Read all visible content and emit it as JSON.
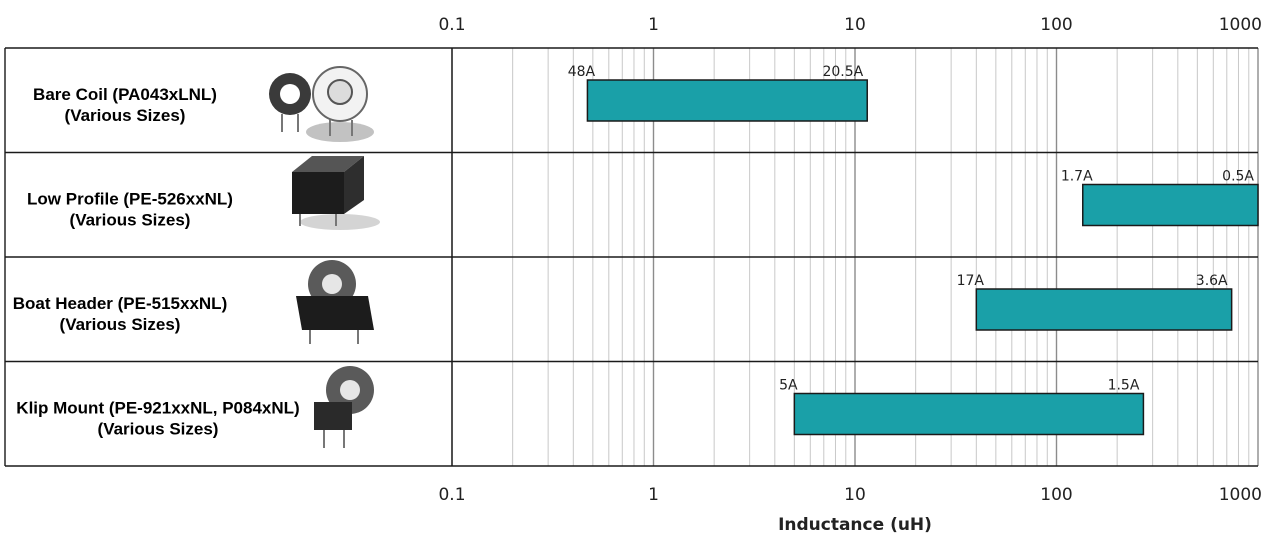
{
  "chart_data": {
    "type": "bar",
    "orientation": "horizontal-range",
    "xlabel": "Inductance (uH)",
    "xscale": "log",
    "xlim": [
      0.1,
      1000
    ],
    "xticks": [
      "0.1",
      "1",
      "10",
      "100",
      "1000"
    ],
    "grid": true,
    "categories": [
      {
        "line1": "Bare Coil (PA043xLNL)",
        "line2": "(Various Sizes)",
        "icon": "toroid-coil-icon",
        "x_start": 0.47,
        "x_end": 11.5,
        "label_start": "48A",
        "label_end": "20.5A"
      },
      {
        "line1": "Low Profile (PE-526xxNL)",
        "line2": "(Various Sizes)",
        "icon": "low-profile-inductor-icon",
        "x_start": 135,
        "x_end": 1000,
        "label_start": "1.7A",
        "label_end": "0.5A"
      },
      {
        "line1": "Boat Header (PE-515xxNL)",
        "line2": "(Various Sizes)",
        "icon": "boat-header-inductor-icon",
        "x_start": 40,
        "x_end": 740,
        "label_start": "17A",
        "label_end": "3.6A"
      },
      {
        "line1": "Klip Mount (PE-921xxNL, P084xNL)",
        "line2": "(Various Sizes)",
        "icon": "klip-mount-inductor-icon",
        "x_start": 5,
        "x_end": 270,
        "label_start": "5A",
        "label_end": "1.5A"
      }
    ],
    "colors": {
      "bar": "#1aa0a8",
      "bar_stroke": "#1a1a1a",
      "grid_major": "#8c8c8c",
      "grid_minor": "#c8c8c8"
    }
  }
}
